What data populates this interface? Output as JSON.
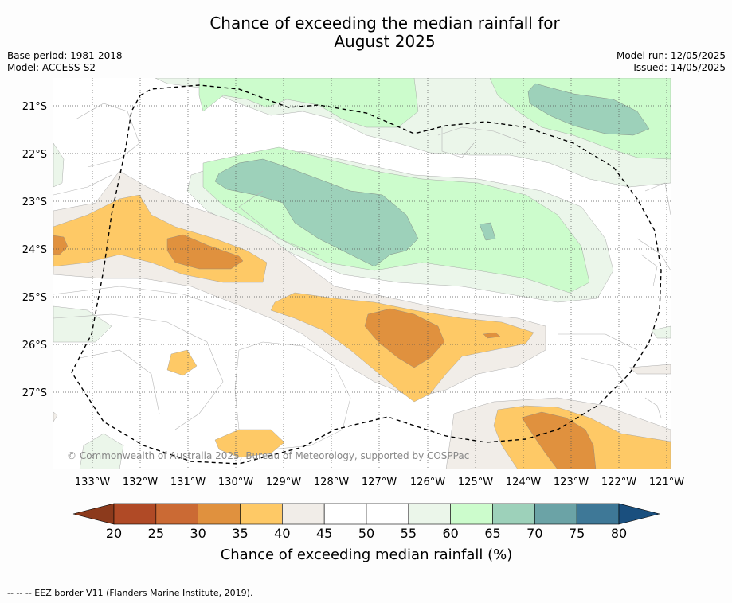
{
  "title_line1": "Chance of exceeding the median rainfall for",
  "title_line2": "August 2025",
  "base_period": "Base period: 1981-2018",
  "model": "Model: ACCESS-S2",
  "model_run": "Model run: 12/05/2025",
  "issued": "Issued: 14/05/2025",
  "copyright": "© Commonwealth of Australia 2025, Bureau of Meteorology, supported by COSPPac",
  "lon_labels": [
    "133°W",
    "132°W",
    "131°W",
    "130°W",
    "129°W",
    "128°W",
    "127°W",
    "126°W",
    "125°W",
    "124°W",
    "123°W",
    "122°W",
    "121°W"
  ],
  "lat_labels": [
    "21°S",
    "22°S",
    "23°S",
    "24°S",
    "25°S",
    "26°S",
    "27°S"
  ],
  "colorbar": {
    "ticks": [
      "20",
      "25",
      "30",
      "35",
      "40",
      "45",
      "50",
      "55",
      "60",
      "65",
      "70",
      "75",
      "80"
    ],
    "colors": [
      "#b04a26",
      "#cb6a34",
      "#e0913e",
      "#fec966",
      "#f1ede8",
      "#ffffff",
      "#ffffff",
      "#ebf6ea",
      "#ccfccc",
      "#9dd1ba",
      "#6ba3a6",
      "#3e7897"
    ],
    "under_color": "#8c3a1c",
    "over_color": "#1a4f7e",
    "label": "Chance of exceeding median rainfall (%)"
  },
  "legend_footnote": "--  --  -- EEZ border V11 (Flanders Marine Institute, 2019)."
}
